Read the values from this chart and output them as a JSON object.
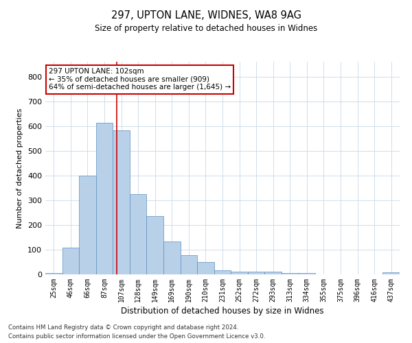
{
  "title1": "297, UPTON LANE, WIDNES, WA8 9AG",
  "title2": "Size of property relative to detached houses in Widnes",
  "xlabel": "Distribution of detached houses by size in Widnes",
  "ylabel": "Number of detached properties",
  "footnote1": "Contains HM Land Registry data © Crown copyright and database right 2024.",
  "footnote2": "Contains public sector information licensed under the Open Government Licence v3.0.",
  "annotation_line1": "297 UPTON LANE: 102sqm",
  "annotation_line2": "← 35% of detached houses are smaller (909)",
  "annotation_line3": "64% of semi-detached houses are larger (1,645) →",
  "bar_color": "#b8d0e8",
  "bar_edge_color": "#5a8fc0",
  "vline_color": "#cc0000",
  "annotation_box_edge": "#cc0000",
  "annotation_box_face": "#ffffff",
  "categories": [
    "25sqm",
    "46sqm",
    "66sqm",
    "87sqm",
    "107sqm",
    "128sqm",
    "149sqm",
    "169sqm",
    "190sqm",
    "210sqm",
    "231sqm",
    "252sqm",
    "272sqm",
    "293sqm",
    "313sqm",
    "334sqm",
    "355sqm",
    "375sqm",
    "396sqm",
    "416sqm",
    "437sqm"
  ],
  "values": [
    5,
    108,
    400,
    613,
    582,
    325,
    235,
    133,
    77,
    49,
    17,
    12,
    12,
    12,
    5,
    5,
    0,
    0,
    0,
    0,
    7
  ],
  "ylim": [
    0,
    860
  ],
  "yticks": [
    0,
    100,
    200,
    300,
    400,
    500,
    600,
    700,
    800
  ],
  "vline_x": 3.75,
  "figsize": [
    6.0,
    5.0
  ],
  "dpi": 100
}
